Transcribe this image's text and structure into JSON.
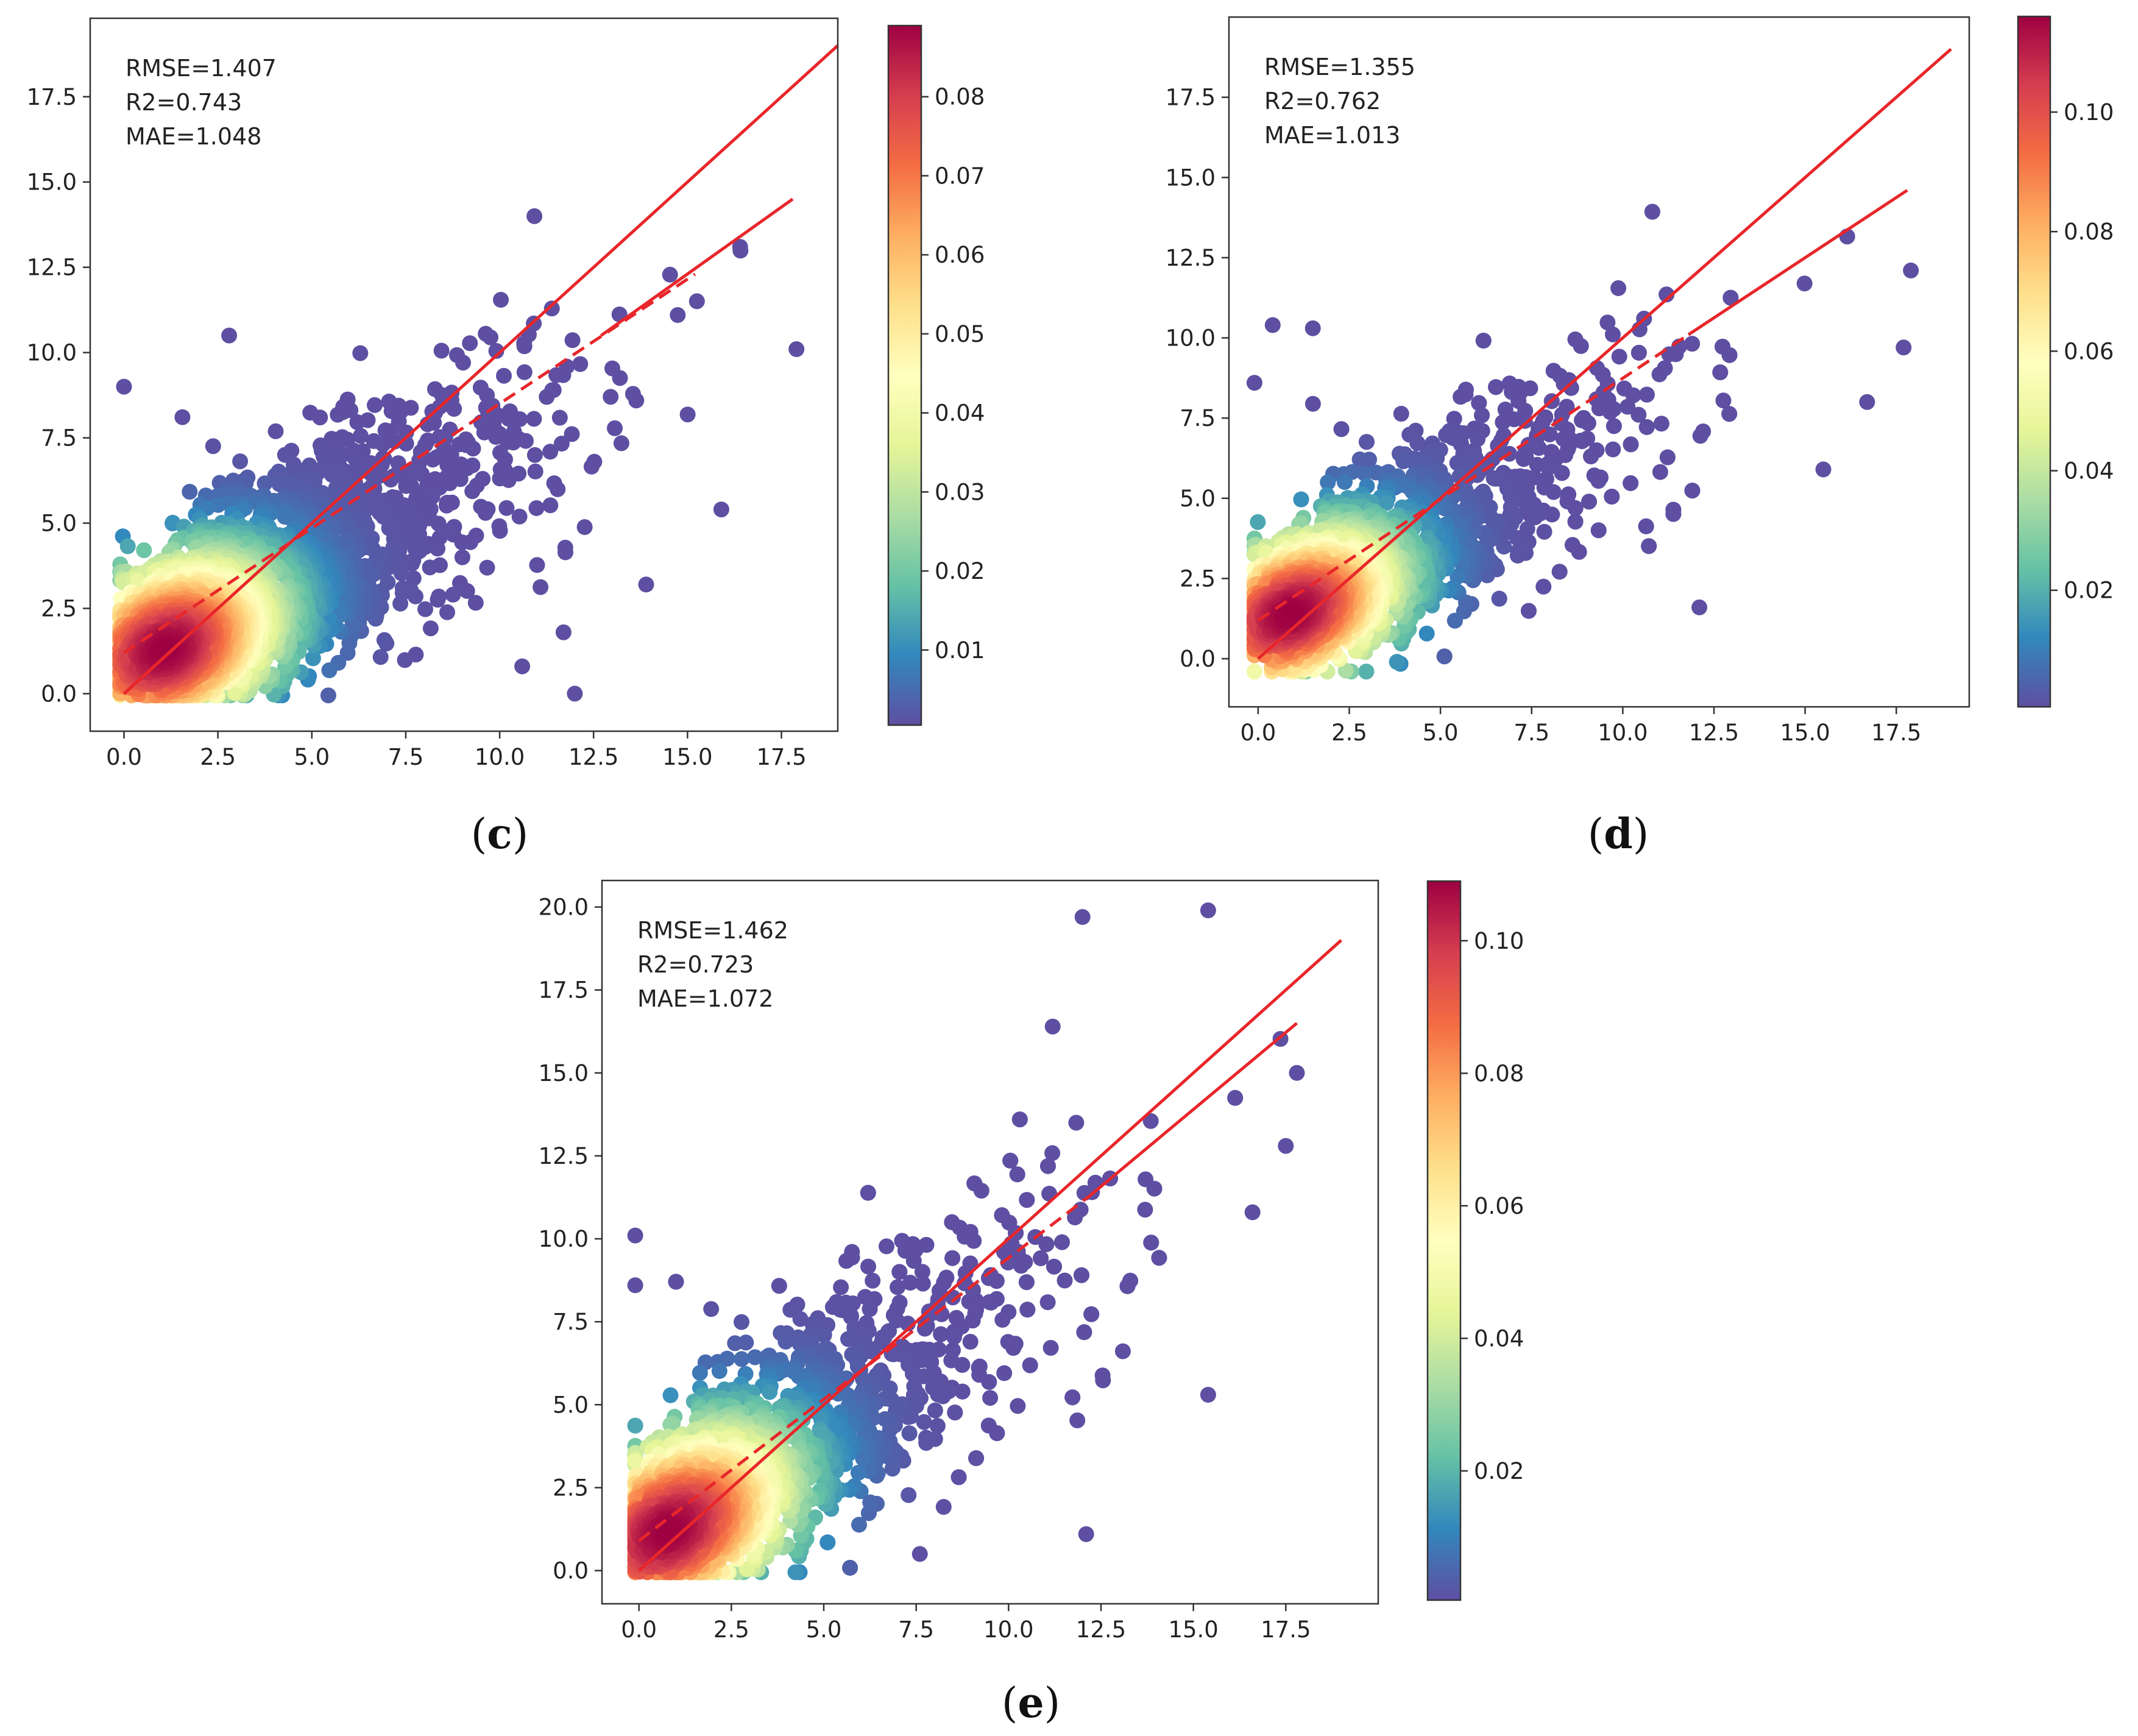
{
  "chart_data": [
    {
      "type": "scatter",
      "panel": "c",
      "stats": [
        "RMSE=1.407",
        "R2=0.743",
        "MAE=1.048"
      ],
      "xlim": [
        -0.9,
        19.0
      ],
      "ylim": [
        -1.1,
        19.8
      ],
      "xticks": [
        0.0,
        2.5,
        5.0,
        7.5,
        10.0,
        12.5,
        15.0,
        17.5
      ],
      "xtick_labels": [
        "0.0",
        "2.5",
        "5.0",
        "7.5",
        "10.0",
        "12.5",
        "15.0",
        "17.5"
      ],
      "yticks": [
        0.0,
        2.5,
        5.0,
        7.5,
        10.0,
        12.5,
        15.0,
        17.5
      ],
      "ytick_labels": [
        "0.0",
        "2.5",
        "5.0",
        "7.5",
        "10.0",
        "12.5",
        "15.0",
        "17.5"
      ],
      "colorbar": {
        "colormap": "Spectral_r",
        "range": [
          0.0005,
          0.089
        ],
        "ticks": [
          0.01,
          0.02,
          0.03,
          0.04,
          0.05,
          0.06,
          0.07,
          0.08
        ],
        "tick_labels": [
          "0.01",
          "0.02",
          "0.03",
          "0.04",
          "0.05",
          "0.06",
          "0.07",
          "0.08"
        ]
      },
      "density": {
        "center": [
          1.1,
          1.3
        ],
        "spread_along": 6.5,
        "spread_across": 1.6,
        "slope": 0.72
      },
      "lines": [
        {
          "kind": "identity",
          "style": "solid",
          "color": "#e8262a",
          "x": [
            0.0,
            19.0
          ],
          "y": [
            0.0,
            19.0
          ]
        },
        {
          "kind": "fit",
          "style": "dashed",
          "color": "#e8262a",
          "x": [
            0.0,
            15.2
          ],
          "y": [
            1.2,
            12.3
          ]
        },
        {
          "kind": "fit",
          "style": "solid",
          "color": "#e8262a",
          "x": [
            12.7,
            17.8
          ],
          "y": [
            10.5,
            14.5
          ]
        }
      ],
      "outliers": [
        [
          0.0,
          9.0
        ],
        [
          2.8,
          10.5
        ],
        [
          12.0,
          0.0
        ],
        [
          10.6,
          0.8
        ],
        [
          17.9,
          10.1
        ],
        [
          15.9,
          5.4
        ],
        [
          16.4,
          13.1
        ],
        [
          13.9,
          3.2
        ],
        [
          11.7,
          1.8
        ]
      ]
    },
    {
      "type": "scatter",
      "panel": "d",
      "stats": [
        "RMSE=1.355",
        "R2=0.762",
        "MAE=1.013"
      ],
      "xlim": [
        -0.8,
        19.5
      ],
      "ylim": [
        -1.5,
        20.0
      ],
      "xticks": [
        0.0,
        2.5,
        5.0,
        7.5,
        10.0,
        12.5,
        15.0,
        17.5
      ],
      "xtick_labels": [
        "0.0",
        "2.5",
        "5.0",
        "7.5",
        "10.0",
        "12.5",
        "15.0",
        "17.5"
      ],
      "yticks": [
        0.0,
        2.5,
        5.0,
        7.5,
        10.0,
        12.5,
        15.0,
        17.5
      ],
      "ytick_labels": [
        "0.0",
        "2.5",
        "5.0",
        "7.5",
        "10.0",
        "12.5",
        "15.0",
        "17.5"
      ],
      "colorbar": {
        "colormap": "Spectral_r",
        "range": [
          0.0005,
          0.116
        ],
        "ticks": [
          0.02,
          0.04,
          0.06,
          0.08,
          0.1
        ],
        "tick_labels": [
          "0.02",
          "0.04",
          "0.06",
          "0.08",
          "0.10"
        ]
      },
      "density": {
        "center": [
          0.9,
          1.4
        ],
        "spread_along": 6.5,
        "spread_across": 1.5,
        "slope": 0.73
      },
      "lines": [
        {
          "kind": "identity",
          "style": "solid",
          "color": "#e8262a",
          "x": [
            0.0,
            19.0
          ],
          "y": [
            0.0,
            19.0
          ]
        },
        {
          "kind": "fit",
          "style": "dashed",
          "color": "#e8262a",
          "x": [
            0.0,
            11.8
          ],
          "y": [
            1.2,
            10.1
          ]
        },
        {
          "kind": "fit",
          "style": "solid",
          "color": "#e8262a",
          "x": [
            11.8,
            17.8
          ],
          "y": [
            10.1,
            14.6
          ]
        }
      ],
      "outliers": [
        [
          0.4,
          10.4
        ],
        [
          1.5,
          10.3
        ],
        [
          15.5,
          5.9
        ],
        [
          17.7,
          9.7
        ],
        [
          12.1,
          1.6
        ],
        [
          17.9,
          12.1
        ],
        [
          16.7,
          8.0
        ],
        [
          -0.1,
          8.6
        ]
      ]
    },
    {
      "type": "scatter",
      "panel": "e",
      "stats": [
        "RMSE=1.462",
        "R2=0.723",
        "MAE=1.072"
      ],
      "xlim": [
        -1.0,
        20.0
      ],
      "ylim": [
        -1.0,
        20.8
      ],
      "xticks": [
        0.0,
        2.5,
        5.0,
        7.5,
        10.0,
        12.5,
        15.0,
        17.5
      ],
      "xtick_labels": [
        "0.0",
        "2.5",
        "5.0",
        "7.5",
        "10.0",
        "12.5",
        "15.0",
        "17.5"
      ],
      "yticks": [
        0.0,
        2.5,
        5.0,
        7.5,
        10.0,
        12.5,
        15.0,
        17.5,
        20.0
      ],
      "ytick_labels": [
        "0.0",
        "2.5",
        "5.0",
        "7.5",
        "10.0",
        "12.5",
        "15.0",
        "17.5",
        "20.0"
      ],
      "colorbar": {
        "colormap": "Spectral_r",
        "range": [
          0.0005,
          0.109
        ],
        "ticks": [
          0.02,
          0.04,
          0.06,
          0.08,
          0.1
        ],
        "tick_labels": [
          "0.02",
          "0.04",
          "0.06",
          "0.08",
          "0.10"
        ]
      },
      "density": {
        "center": [
          0.8,
          1.2
        ],
        "spread_along": 7.5,
        "spread_across": 1.7,
        "slope": 0.85
      },
      "lines": [
        {
          "kind": "identity",
          "style": "solid",
          "color": "#e8262a",
          "x": [
            0.0,
            19.0
          ],
          "y": [
            0.0,
            19.0
          ]
        },
        {
          "kind": "fit",
          "style": "dashed",
          "color": "#e8262a",
          "x": [
            0.0,
            12.2
          ],
          "y": [
            0.9,
            11.3
          ]
        },
        {
          "kind": "fit",
          "style": "solid",
          "color": "#e8262a",
          "x": [
            12.2,
            17.8
          ],
          "y": [
            11.3,
            16.5
          ]
        }
      ],
      "outliers": [
        [
          -0.1,
          10.1
        ],
        [
          12.0,
          19.7
        ],
        [
          15.4,
          19.9
        ],
        [
          12.1,
          1.1
        ],
        [
          7.6,
          0.5
        ],
        [
          15.4,
          5.3
        ],
        [
          17.8,
          15.0
        ],
        [
          17.5,
          12.8
        ],
        [
          16.6,
          10.8
        ],
        [
          -0.1,
          8.6
        ]
      ]
    }
  ],
  "captions": {
    "c": "c",
    "d": "d",
    "e": "e"
  }
}
